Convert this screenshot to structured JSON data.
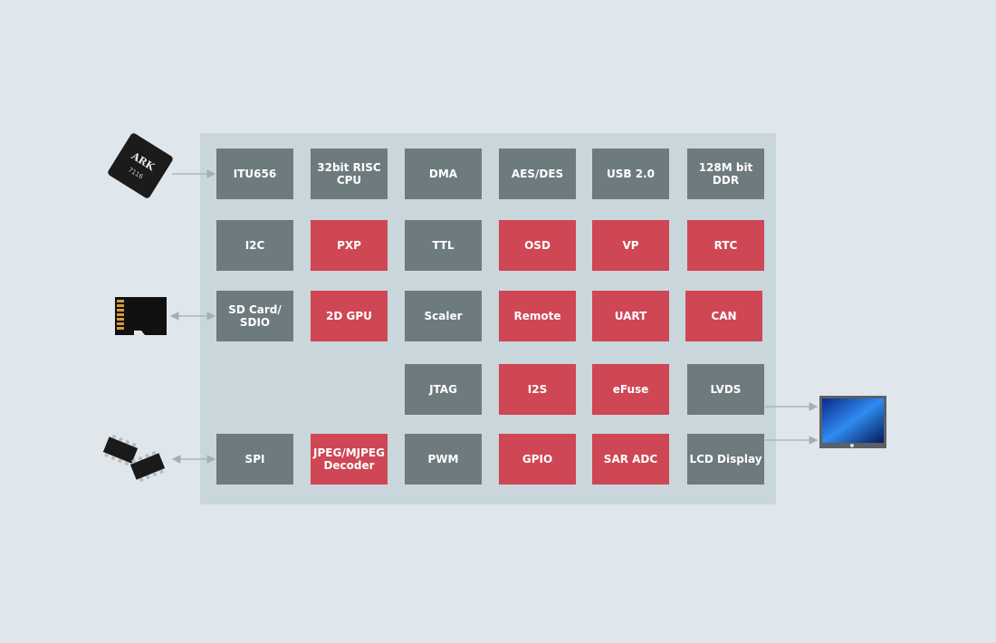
{
  "colors": {
    "background": "#dfe7ec",
    "panel": "#c9d6dc",
    "standard_block": "#6d7a7e",
    "highlight_block": "#cf4654",
    "arrow": "#9fb0ba"
  },
  "chip_logo": "ARK 7116",
  "blocks": [
    {
      "label": "ITU656",
      "color": "gray",
      "row": 0,
      "col": 0
    },
    {
      "label": "32bit RISC\nCPU",
      "color": "gray",
      "row": 0,
      "col": 1
    },
    {
      "label": "DMA",
      "color": "gray",
      "row": 0,
      "col": 2
    },
    {
      "label": "AES/DES",
      "color": "gray",
      "row": 0,
      "col": 3
    },
    {
      "label": "USB 2.0",
      "color": "gray",
      "row": 0,
      "col": 4
    },
    {
      "label": "128M bit\nDDR",
      "color": "gray",
      "row": 0,
      "col": 5
    },
    {
      "label": "I2C",
      "color": "gray",
      "row": 1,
      "col": 0
    },
    {
      "label": "PXP",
      "color": "red",
      "row": 1,
      "col": 1
    },
    {
      "label": "TTL",
      "color": "gray",
      "row": 1,
      "col": 2
    },
    {
      "label": "OSD",
      "color": "red",
      "row": 1,
      "col": 3
    },
    {
      "label": "VP",
      "color": "red",
      "row": 1,
      "col": 4
    },
    {
      "label": "RTC",
      "color": "red",
      "row": 1,
      "col": 5
    },
    {
      "label": "SD Card/\nSDIO",
      "color": "gray",
      "row": 2,
      "col": 0
    },
    {
      "label": "2D GPU",
      "color": "red",
      "row": 2,
      "col": 1
    },
    {
      "label": "Scaler",
      "color": "gray",
      "row": 2,
      "col": 2
    },
    {
      "label": "Remote",
      "color": "red",
      "row": 2,
      "col": 3
    },
    {
      "label": "UART",
      "color": "red",
      "row": 2,
      "col": 4
    },
    {
      "label": "CAN",
      "color": "red",
      "row": 2,
      "col": 5
    },
    {
      "label": "JTAG",
      "color": "gray",
      "row": 3,
      "col": 2
    },
    {
      "label": "I2S",
      "color": "red",
      "row": 3,
      "col": 3
    },
    {
      "label": "eFuse",
      "color": "red",
      "row": 3,
      "col": 4
    },
    {
      "label": "LVDS",
      "color": "gray",
      "row": 3,
      "col": 5
    },
    {
      "label": "SPI",
      "color": "gray",
      "row": 4,
      "col": 0
    },
    {
      "label": "JPEG/MJPEG\nDecoder",
      "color": "red",
      "row": 4,
      "col": 1
    },
    {
      "label": "PWM",
      "color": "gray",
      "row": 4,
      "col": 2
    },
    {
      "label": "GPIO",
      "color": "red",
      "row": 4,
      "col": 3
    },
    {
      "label": "SAR ADC",
      "color": "red",
      "row": 4,
      "col": 4
    },
    {
      "label": "LCD Display",
      "color": "gray",
      "row": 4,
      "col": 5
    }
  ]
}
